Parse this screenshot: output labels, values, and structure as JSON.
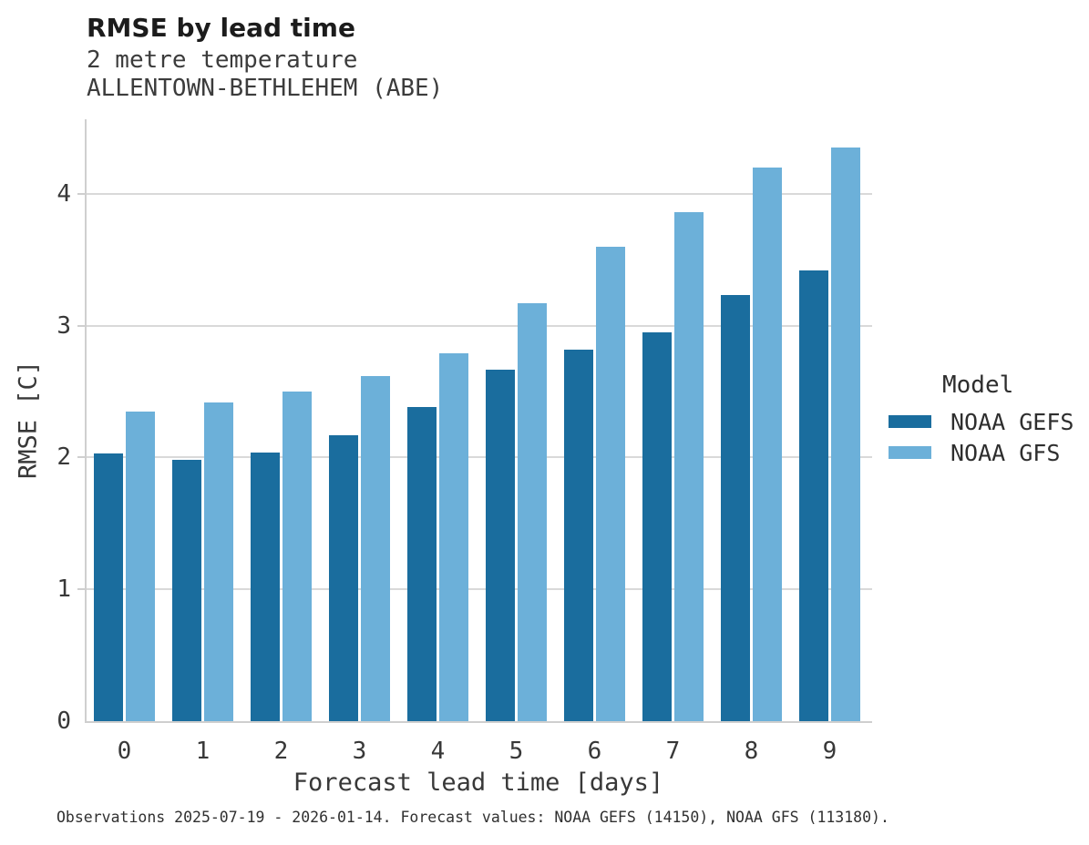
{
  "caption": "Observations 2025-07-19 - 2026-01-14. Forecast values: NOAA GEFS (14150), NOAA GFS (113180).",
  "chart_data": {
    "type": "bar",
    "title": "RMSE by lead time",
    "subtitle_lines": [
      "2 metre temperature",
      "ALLENTOWN-BETHLEHEM (ABE)"
    ],
    "categories": [
      "0",
      "1",
      "2",
      "3",
      "4",
      "5",
      "6",
      "7",
      "8",
      "9"
    ],
    "series": [
      {
        "name": "NOAA GEFS",
        "color": "#1a6d9e",
        "values": [
          2.03,
          1.98,
          2.04,
          2.17,
          2.38,
          2.67,
          2.82,
          2.95,
          3.23,
          3.42
        ]
      },
      {
        "name": "NOAA GFS",
        "color": "#6cb0d9",
        "values": [
          2.35,
          2.42,
          2.5,
          2.62,
          2.79,
          3.17,
          3.6,
          3.86,
          4.2,
          4.35
        ]
      }
    ],
    "xlabel": "Forecast lead time [days]",
    "ylabel": "RMSE [C]",
    "ylim": [
      0,
      4.57
    ],
    "yticks": [
      0,
      1,
      2,
      3,
      4
    ],
    "grid": true,
    "legend_title": "Model",
    "legend_position": "right"
  }
}
